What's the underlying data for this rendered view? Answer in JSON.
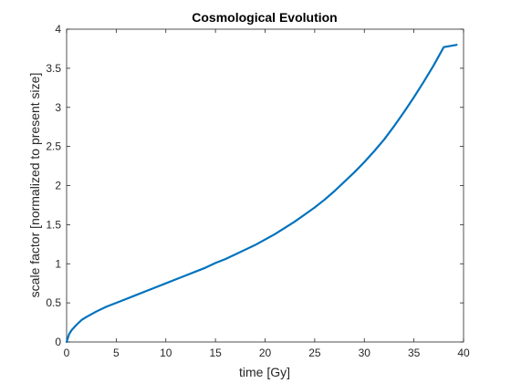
{
  "chart_data": {
    "type": "line",
    "title": "Cosmological Evolution",
    "xlabel": "time [Gy]",
    "ylabel": "scale factor [normalized to present size]",
    "xlim": [
      0,
      40
    ],
    "ylim": [
      0,
      4
    ],
    "x_ticks": [
      "0",
      "5",
      "10",
      "15",
      "20",
      "25",
      "30",
      "35",
      "40"
    ],
    "y_ticks": [
      "0",
      "0.5",
      "1",
      "1.5",
      "2",
      "2.5",
      "3",
      "3.5",
      "4"
    ],
    "grid": false,
    "series": [
      {
        "color": "#0072bd",
        "x": [
          0,
          0.25,
          0.5,
          1,
          1.5,
          2,
          3,
          4,
          5,
          6,
          7,
          8,
          9,
          10,
          11,
          12,
          13,
          14,
          15,
          16,
          17,
          18,
          19,
          20,
          21,
          22,
          23,
          24,
          25,
          26,
          27,
          28,
          29,
          30,
          31,
          32,
          33,
          34,
          35,
          36,
          37,
          38,
          39.3
        ],
        "y": [
          0,
          0.1,
          0.15,
          0.22,
          0.28,
          0.32,
          0.39,
          0.45,
          0.5,
          0.55,
          0.6,
          0.65,
          0.7,
          0.75,
          0.8,
          0.85,
          0.9,
          0.95,
          1.01,
          1.06,
          1.12,
          1.18,
          1.24,
          1.31,
          1.38,
          1.46,
          1.54,
          1.63,
          1.72,
          1.82,
          1.93,
          2.05,
          2.17,
          2.3,
          2.44,
          2.59,
          2.76,
          2.94,
          3.13,
          3.33,
          3.54,
          3.77,
          3.8
        ]
      }
    ]
  }
}
